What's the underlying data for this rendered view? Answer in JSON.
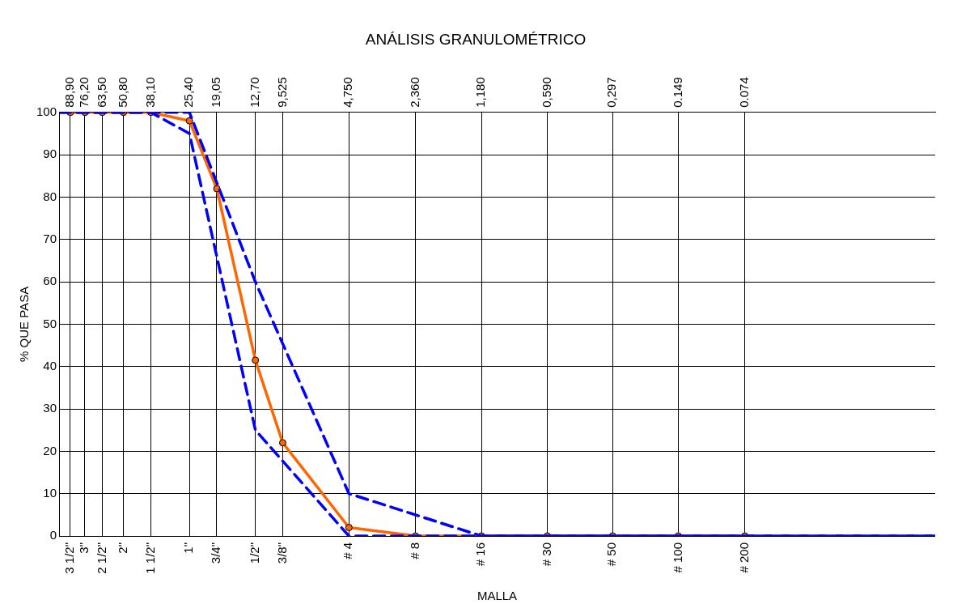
{
  "chart_data": {
    "type": "line",
    "title": "ANÁLISIS GRANULOMÉTRICO",
    "xlabel": "MALLA",
    "ylabel": "% QUE PASA",
    "log": "x",
    "grid": true,
    "legend": false,
    "xlim": [
      100,
      0.01
    ],
    "ylim": [
      0,
      100
    ],
    "yticks": [
      0,
      10,
      20,
      30,
      40,
      50,
      60,
      70,
      80,
      90,
      100
    ],
    "xticks": [
      {
        "value": 88.9,
        "label": "88,90"
      },
      {
        "value": 76.2,
        "label": "76,20"
      },
      {
        "value": 63.5,
        "label": "63,50"
      },
      {
        "value": 50.8,
        "label": "50,80"
      },
      {
        "value": 38.1,
        "label": "38,10"
      },
      {
        "value": 25.4,
        "label": "25,40"
      },
      {
        "value": 19.05,
        "label": "19,05"
      },
      {
        "value": 12.7,
        "label": "12,70"
      },
      {
        "value": 9.525,
        "label": "9,525"
      },
      {
        "value": 4.75,
        "label": "4,750"
      },
      {
        "value": 2.36,
        "label": "2,360"
      },
      {
        "value": 1.18,
        "label": "1,180"
      },
      {
        "value": 0.59,
        "label": "0,590"
      },
      {
        "value": 0.297,
        "label": "0,297"
      },
      {
        "value": 0.149,
        "label": "0.149"
      },
      {
        "value": 0.074,
        "label": "0.074"
      }
    ],
    "annotations": [
      "3 1/2\"",
      "3\"",
      "2 1/2\"",
      "2\"",
      "1 1/2\"",
      "1\"",
      "3/4\"",
      "1/2\"",
      "3/8\"",
      "# 4",
      "# 8",
      "# 16",
      "# 30",
      "# 50",
      "# 100",
      "# 200"
    ],
    "series": [
      {
        "color": "#0000ff",
        "marker": "none",
        "line_style": "dashed",
        "x": [
          100,
          38.1,
          25.4,
          12.7,
          4.75,
          2.36,
          1.18,
          0.01
        ],
        "values": [
          100,
          100,
          100,
          60,
          10,
          5,
          0,
          0
        ]
      },
      {
        "color": "#0000ff",
        "marker": "none",
        "line_style": "dashed",
        "x": [
          100,
          38.1,
          25.4,
          12.7,
          4.75,
          0.01
        ],
        "values": [
          100,
          100,
          95,
          25,
          0,
          0
        ]
      },
      {
        "color": "#ff6600",
        "marker": "circle",
        "line_style": "solid",
        "x": [
          88.9,
          76.2,
          63.5,
          50.8,
          38.1,
          25.4,
          19.05,
          12.7,
          9.525,
          4.75,
          2.36,
          1.18,
          0.59,
          0.297,
          0.149,
          0.074
        ],
        "values": [
          100,
          100,
          100,
          100,
          100,
          98,
          82,
          41.5,
          22,
          2,
          0,
          0,
          0,
          0,
          0,
          0
        ]
      }
    ]
  }
}
